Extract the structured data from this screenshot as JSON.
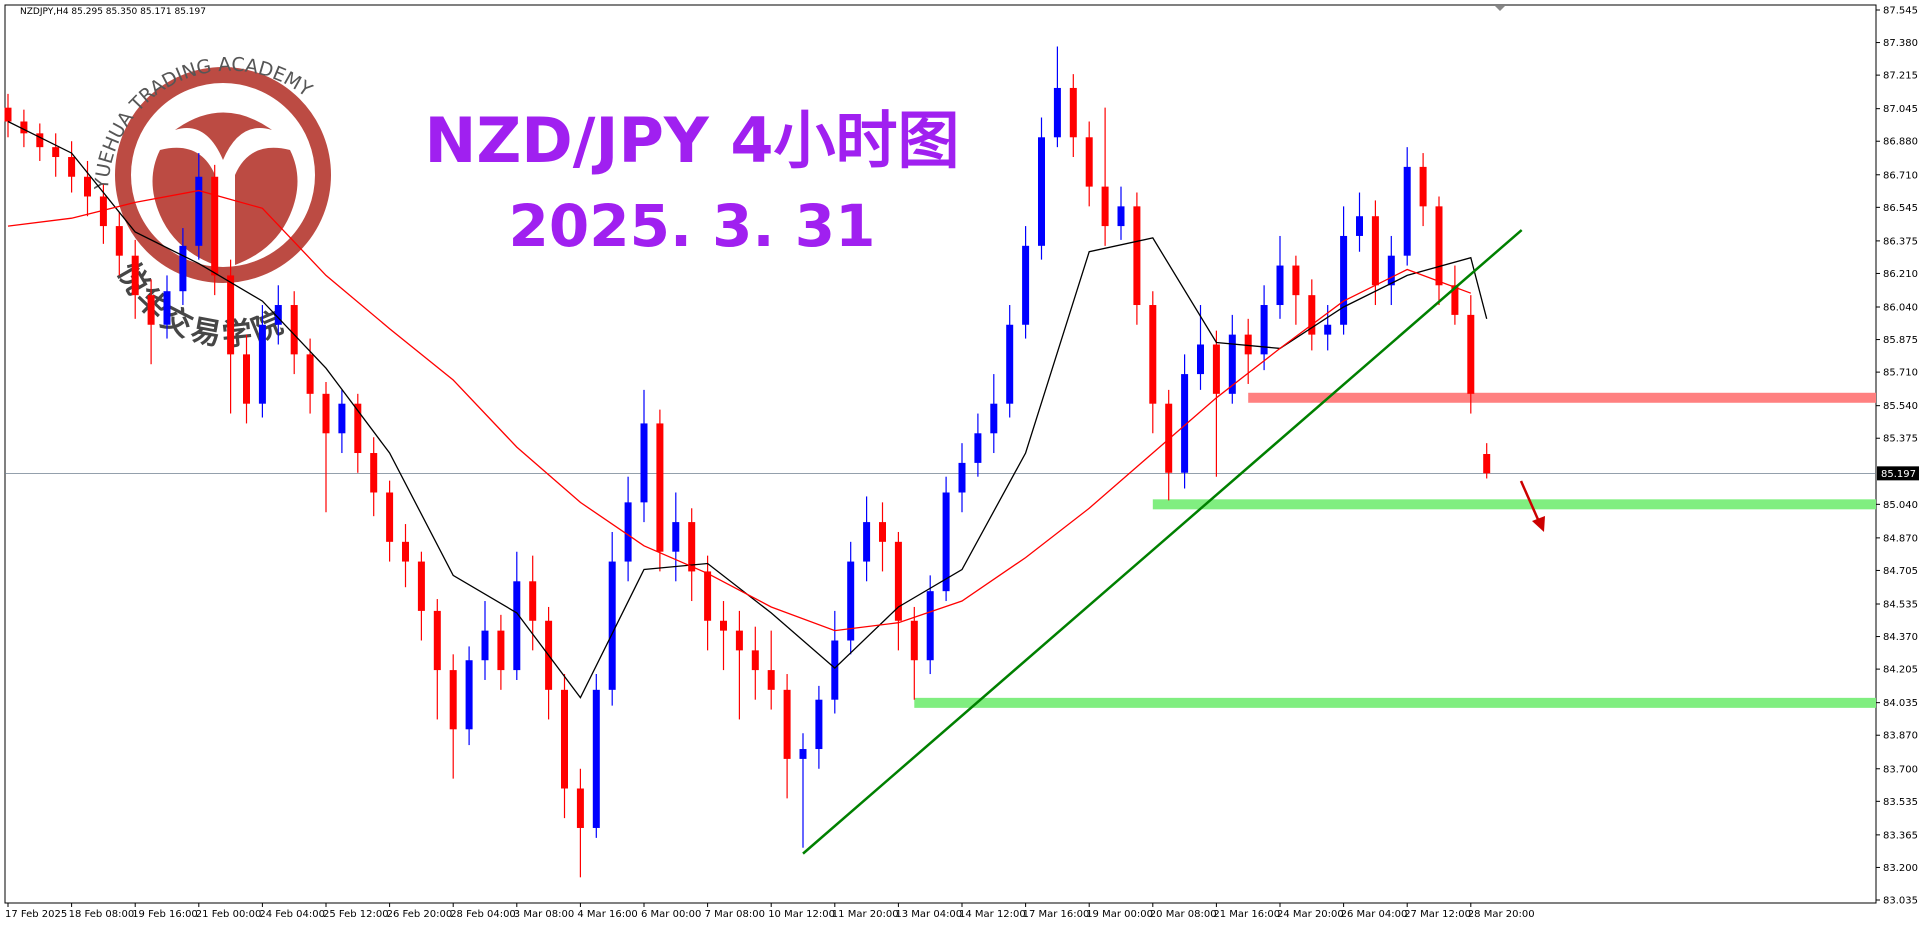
{
  "chart_data": {
    "type": "candlestick",
    "header": "NZDJPY,H4  85.295 85.350 85.171 85.197",
    "title": "NZD/JPY 4小时图",
    "subtitle": "2025. 3. 31",
    "watermark": {
      "en": "YUEHUA TRADING ACADEMY",
      "cn": "悦华交易学院"
    },
    "categories": [
      "17 Feb 2025",
      null,
      null,
      null,
      "18 Feb 08:00",
      null,
      null,
      null,
      "19 Feb 16:00",
      null,
      null,
      null,
      "21 Feb 00:00",
      null,
      null,
      null,
      "24 Feb 04:00",
      null,
      null,
      null,
      "25 Feb 12:00",
      null,
      null,
      null,
      "26 Feb 20:00",
      null,
      null,
      null,
      "28 Feb 04:00",
      null,
      null,
      null,
      "3 Mar 08:00",
      null,
      null,
      null,
      "4 Mar 16:00",
      null,
      null,
      null,
      "6 Mar 00:00",
      null,
      null,
      null,
      "7 Mar 08:00",
      null,
      null,
      null,
      "10 Mar 12:00",
      null,
      null,
      null,
      "11 Mar 20:00",
      null,
      null,
      null,
      "13 Mar 04:00",
      null,
      null,
      null,
      "14 Mar 12:00",
      null,
      null,
      null,
      "17 Mar 16:00",
      null,
      null,
      null,
      "19 Mar 00:00",
      null,
      null,
      null,
      "20 Mar 08:00",
      null,
      null,
      null,
      "21 Mar 16:00",
      null,
      null,
      null,
      "24 Mar 20:00",
      null,
      null,
      null,
      "26 Mar 04:00",
      null,
      null,
      null,
      "27 Mar 12:00",
      null,
      null,
      null,
      "28 Mar 20:00",
      null
    ],
    "candles": {
      "open": [
        87.05,
        86.98,
        86.92,
        86.85,
        86.8,
        86.7,
        86.6,
        86.45,
        86.3,
        86.1,
        85.95,
        86.12,
        86.35,
        86.7,
        86.2,
        85.8,
        85.55,
        85.95,
        86.05,
        85.8,
        85.6,
        85.4,
        85.55,
        85.3,
        85.1,
        84.85,
        84.75,
        84.5,
        84.2,
        83.9,
        84.25,
        84.4,
        84.2,
        84.65,
        84.45,
        84.1,
        83.6,
        83.4,
        84.1,
        84.75,
        85.05,
        85.45,
        84.8,
        84.95,
        84.7,
        84.45,
        84.4,
        84.3,
        84.2,
        84.1,
        83.75,
        83.8,
        84.05,
        84.35,
        84.75,
        84.95,
        84.85,
        84.45,
        84.25,
        84.6,
        85.1,
        85.25,
        85.4,
        85.55,
        85.95,
        86.35,
        86.9,
        87.15,
        86.9,
        86.65,
        86.45,
        86.55,
        86.05,
        85.55,
        85.2,
        85.7,
        85.85,
        85.6,
        85.9,
        85.8,
        86.05,
        86.25,
        86.1,
        85.9,
        85.95,
        86.4,
        86.5,
        86.15,
        86.3,
        86.75,
        86.55,
        86.15,
        86.0,
        85.295
      ],
      "high": [
        87.12,
        87.04,
        86.97,
        86.92,
        86.88,
        86.78,
        86.66,
        86.52,
        86.38,
        86.18,
        86.2,
        86.44,
        86.82,
        86.76,
        86.28,
        85.9,
        86.05,
        86.15,
        86.12,
        85.88,
        85.66,
        85.62,
        85.6,
        85.38,
        85.16,
        84.94,
        84.8,
        84.56,
        84.28,
        84.32,
        84.55,
        84.48,
        84.8,
        84.78,
        84.52,
        84.18,
        83.7,
        84.18,
        84.9,
        85.18,
        85.62,
        85.52,
        85.1,
        85.02,
        84.78,
        84.55,
        84.5,
        84.42,
        84.4,
        84.18,
        83.88,
        84.12,
        84.5,
        84.85,
        85.08,
        85.05,
        84.9,
        84.52,
        84.68,
        85.18,
        85.35,
        85.5,
        85.7,
        86.05,
        86.45,
        87.0,
        87.36,
        87.22,
        86.98,
        87.05,
        86.65,
        86.62,
        86.12,
        85.62,
        85.8,
        86.05,
        85.92,
        86.0,
        85.98,
        86.15,
        86.4,
        86.3,
        86.18,
        86.05,
        86.55,
        86.62,
        86.58,
        86.4,
        86.85,
        86.82,
        86.6,
        86.25,
        86.1,
        85.35
      ],
      "low": [
        86.9,
        86.85,
        86.78,
        86.7,
        86.62,
        86.5,
        86.36,
        86.2,
        85.98,
        85.75,
        85.88,
        86.05,
        86.28,
        86.1,
        85.5,
        85.45,
        85.48,
        85.85,
        85.7,
        85.5,
        85.0,
        85.3,
        85.2,
        84.98,
        84.75,
        84.62,
        84.35,
        83.95,
        83.65,
        83.82,
        84.15,
        84.1,
        84.15,
        84.3,
        83.95,
        83.45,
        83.15,
        83.35,
        84.02,
        84.65,
        84.95,
        84.7,
        84.65,
        84.55,
        84.3,
        84.2,
        83.95,
        84.05,
        84.0,
        83.55,
        83.3,
        83.7,
        83.98,
        84.28,
        84.65,
        84.7,
        84.3,
        84.05,
        84.18,
        84.55,
        85.0,
        85.18,
        85.3,
        85.48,
        85.88,
        86.28,
        86.85,
        86.8,
        86.55,
        86.35,
        86.38,
        85.95,
        85.4,
        85.06,
        85.12,
        85.62,
        85.18,
        85.55,
        85.65,
        85.72,
        85.98,
        85.95,
        85.82,
        85.82,
        85.9,
        86.32,
        86.05,
        86.05,
        86.25,
        86.45,
        86.05,
        85.95,
        85.5,
        85.171
      ],
      "close": [
        86.98,
        86.92,
        86.85,
        86.8,
        86.7,
        86.6,
        86.45,
        86.3,
        86.1,
        85.95,
        86.12,
        86.35,
        86.7,
        86.2,
        85.8,
        85.55,
        85.95,
        86.05,
        85.8,
        85.6,
        85.4,
        85.55,
        85.3,
        85.1,
        84.85,
        84.75,
        84.5,
        84.2,
        83.9,
        84.25,
        84.4,
        84.2,
        84.65,
        84.45,
        84.1,
        83.6,
        83.4,
        84.1,
        84.75,
        85.05,
        85.45,
        84.8,
        84.95,
        84.7,
        84.45,
        84.4,
        84.3,
        84.2,
        84.1,
        83.75,
        83.8,
        84.05,
        84.35,
        84.75,
        84.95,
        84.85,
        84.45,
        84.25,
        84.6,
        85.1,
        85.25,
        85.4,
        85.55,
        85.95,
        86.35,
        86.9,
        87.15,
        86.9,
        86.65,
        86.45,
        86.55,
        86.05,
        85.55,
        85.2,
        85.7,
        85.85,
        85.6,
        85.9,
        85.8,
        86.05,
        86.25,
        86.1,
        85.9,
        85.95,
        86.4,
        86.5,
        86.15,
        86.3,
        86.75,
        86.55,
        86.15,
        86.0,
        85.6,
        85.197
      ]
    },
    "up_color": "#0000ff",
    "down_color": "#ff0000",
    "ma_lines": [
      {
        "color": "#000000",
        "x": [
          0,
          4,
          8,
          12,
          16,
          20,
          24,
          28,
          32,
          36,
          40,
          44,
          48,
          52,
          56,
          60,
          64,
          68,
          72,
          76,
          80,
          84,
          88,
          92,
          93
        ],
        "values": [
          86.98,
          86.82,
          86.42,
          86.26,
          86.07,
          85.73,
          85.3,
          84.68,
          84.49,
          84.06,
          84.71,
          84.74,
          84.49,
          84.21,
          84.52,
          84.71,
          85.3,
          86.32,
          86.39,
          85.86,
          85.83,
          86.04,
          86.2,
          86.29,
          85.98
        ]
      },
      {
        "color": "#ff0000",
        "x": [
          0,
          4,
          8,
          12,
          16,
          20,
          24,
          28,
          32,
          36,
          40,
          44,
          48,
          52,
          56,
          60,
          64,
          68,
          72,
          76,
          80,
          84,
          88,
          92
        ],
        "values": [
          86.45,
          86.49,
          86.57,
          86.63,
          86.54,
          86.2,
          85.93,
          85.67,
          85.33,
          85.05,
          84.83,
          84.69,
          84.52,
          84.4,
          84.44,
          84.55,
          84.77,
          85.02,
          85.3,
          85.58,
          85.83,
          86.07,
          86.23,
          86.11
        ]
      }
    ],
    "levels": [
      {
        "value": 85.58,
        "start": 78,
        "color": "#ff8080"
      },
      {
        "value": 85.04,
        "start": 72,
        "color": "#80ee80"
      },
      {
        "value": 84.034,
        "start": 57,
        "color": "#80ee80"
      }
    ],
    "trendline": {
      "x": [
        50,
        95.2
      ],
      "values": [
        83.27,
        86.43
      ],
      "color": "#008000"
    },
    "current_price": 85.197,
    "ylim": [
      83.035,
      87.545
    ],
    "yticks": [
      87.545,
      {
        "value": 87.38,
        "label": "87.380"
      },
      87.215,
      87.045,
      {
        "value": 86.88,
        "label": "86.880"
      },
      {
        "value": 86.71,
        "label": "86.710"
      },
      86.545,
      86.375,
      {
        "value": 86.21,
        "label": "86.210"
      },
      {
        "value": 86.04,
        "label": "86.040"
      },
      85.875,
      {
        "value": 85.71,
        "label": "85.710"
      },
      {
        "value": 85.54,
        "label": "85.540"
      },
      85.375,
      {
        "value": 85.04,
        "label": "85.040"
      },
      {
        "value": 84.87,
        "label": "84.870"
      },
      84.705,
      84.535,
      {
        "value": 84.37,
        "label": "84.370"
      },
      84.205,
      84.035,
      {
        "value": 83.87,
        "label": "83.870"
      },
      {
        "value": 83.7,
        "label": "83.700"
      },
      83.535,
      83.365,
      {
        "value": 83.2,
        "label": "83.200"
      },
      83.035
    ]
  }
}
